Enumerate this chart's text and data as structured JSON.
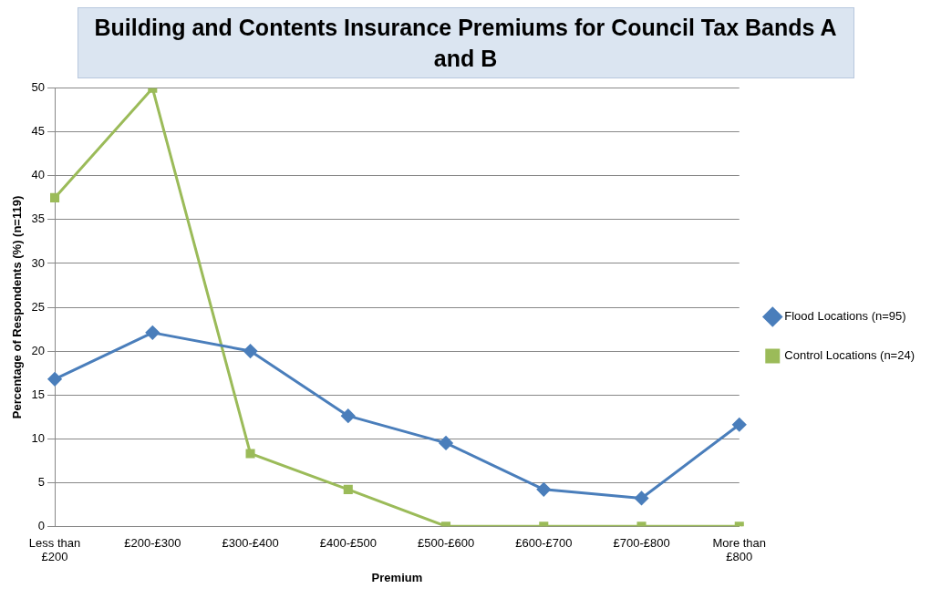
{
  "chart_data": {
    "type": "line",
    "title": "Building and Contents Insurance Premiums for Council Tax Bands A and B",
    "xlabel": "Premium",
    "ylabel": "Percentage of Respondents (%) (n=119)",
    "categories": [
      "Less than £200",
      "£200-£300",
      "£300-£400",
      "£400-£500",
      "£500-£600",
      "£600-£700",
      "£700-£800",
      "More than £800"
    ],
    "series": [
      {
        "name": "Flood Locations (n=95)",
        "color": "#4a7ebb",
        "marker": "diamond",
        "values": [
          16.8,
          22.1,
          20,
          12.6,
          9.5,
          4.2,
          3.2,
          11.6
        ]
      },
      {
        "name": "Control Locations (n=24)",
        "color": "#9bbb59",
        "marker": "square",
        "values": [
          37.5,
          50,
          8.3,
          4.2,
          0,
          0,
          0,
          0
        ]
      }
    ],
    "ylim": [
      0,
      50
    ],
    "yticks": [
      0,
      5,
      10,
      15,
      20,
      25,
      30,
      35,
      40,
      45,
      50
    ],
    "grid": "y",
    "legend": "right",
    "line_style": "solid"
  }
}
